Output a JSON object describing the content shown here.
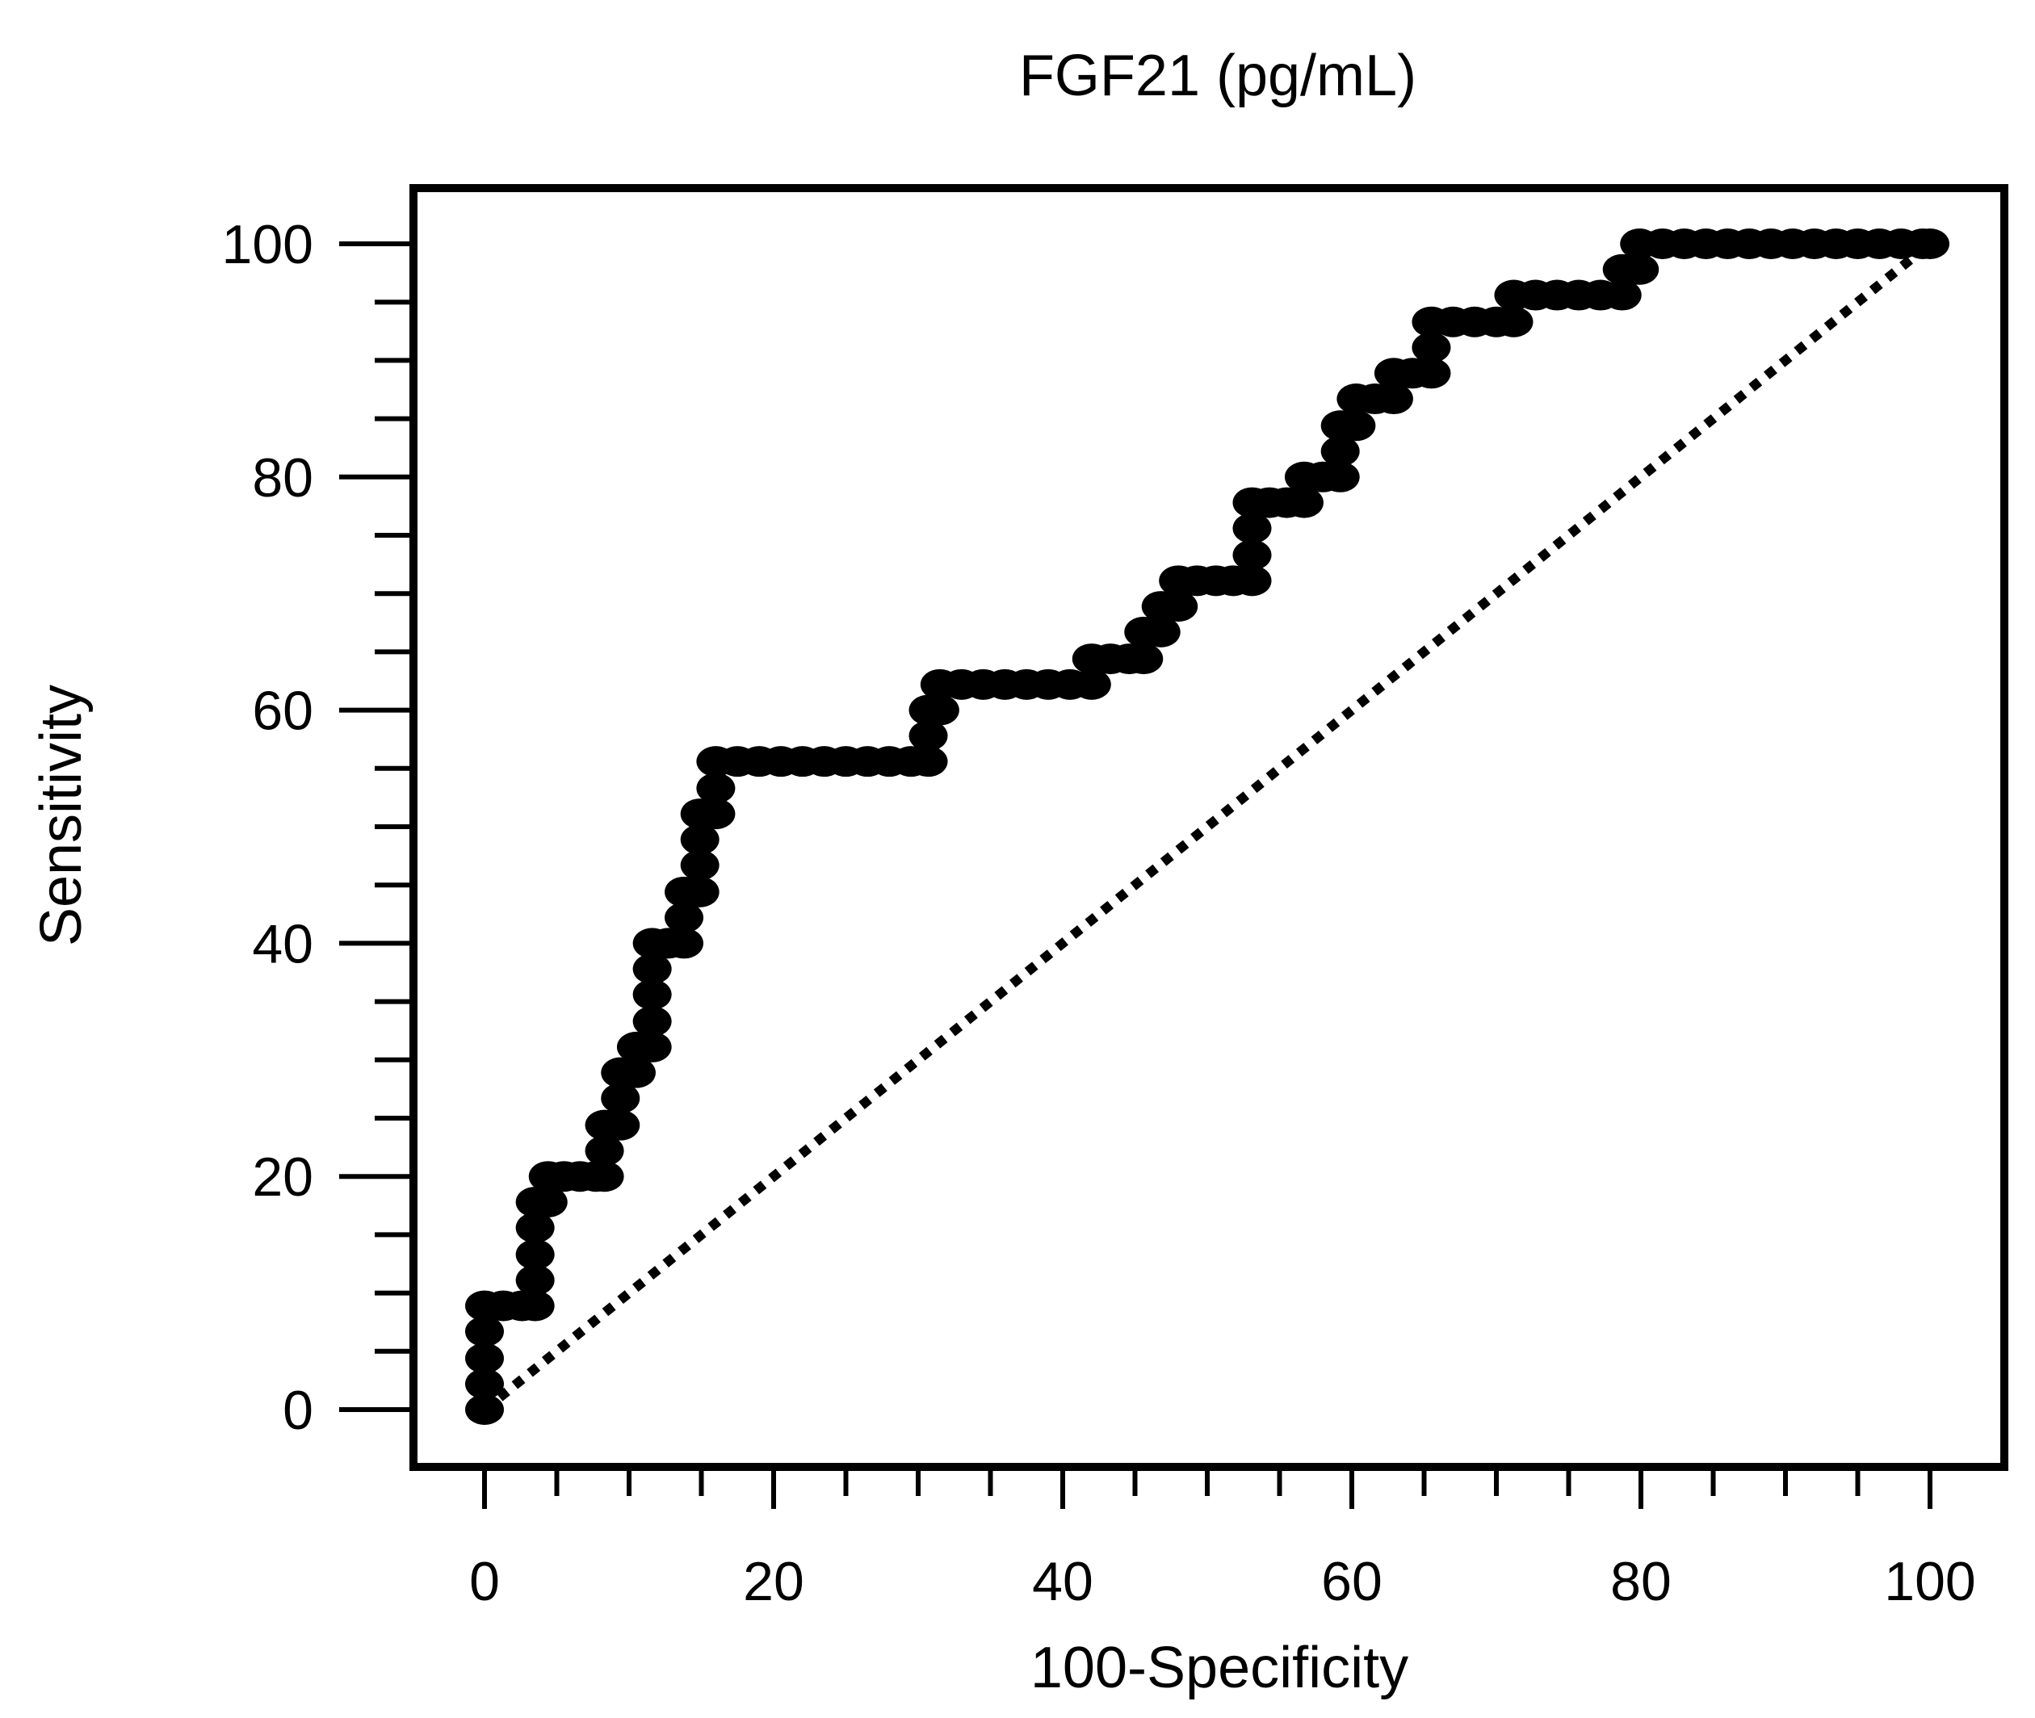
{
  "chart_data": {
    "type": "line",
    "title": "FGF21 (pg/mL)",
    "xlabel": "100-Specificity",
    "ylabel": "Sensitivity",
    "xlim": [
      0,
      100
    ],
    "ylim": [
      0,
      100
    ],
    "x_ticks": [
      0,
      20,
      40,
      60,
      80,
      100
    ],
    "y_ticks": [
      0,
      20,
      40,
      60,
      80,
      100
    ],
    "minor_tick_step": 5,
    "grid": false,
    "legend": "none",
    "colors": {
      "line": "#000000",
      "background": "#ffffff"
    },
    "series": [
      {
        "name": "ROC curve",
        "style": "thick step line with markers",
        "points": [
          [
            0,
            0
          ],
          [
            0,
            2.2
          ],
          [
            0,
            4.4
          ],
          [
            0,
            6.7
          ],
          [
            0,
            8.9
          ],
          [
            1.3,
            8.9
          ],
          [
            2.6,
            8.9
          ],
          [
            3.5,
            8.9
          ],
          [
            3.5,
            11.1
          ],
          [
            3.5,
            13.3
          ],
          [
            3.5,
            15.6
          ],
          [
            3.5,
            17.8
          ],
          [
            4.4,
            17.8
          ],
          [
            4.4,
            20
          ],
          [
            5.5,
            20
          ],
          [
            6.6,
            20
          ],
          [
            7.7,
            20
          ],
          [
            8.3,
            20
          ],
          [
            8.3,
            22.2
          ],
          [
            8.3,
            24.4
          ],
          [
            9.4,
            24.4
          ],
          [
            9.4,
            26.7
          ],
          [
            9.4,
            28.9
          ],
          [
            10.5,
            28.9
          ],
          [
            10.5,
            31.1
          ],
          [
            11.6,
            31.1
          ],
          [
            11.6,
            33.3
          ],
          [
            11.6,
            35.6
          ],
          [
            11.6,
            37.8
          ],
          [
            11.6,
            40
          ],
          [
            12.7,
            40
          ],
          [
            13.8,
            40
          ],
          [
            13.8,
            42.2
          ],
          [
            13.8,
            44.4
          ],
          [
            14.9,
            44.4
          ],
          [
            14.9,
            46.7
          ],
          [
            14.9,
            48.9
          ],
          [
            14.9,
            51.1
          ],
          [
            16.0,
            51.1
          ],
          [
            16.0,
            53.3
          ],
          [
            16.0,
            55.6
          ],
          [
            17.5,
            55.6
          ],
          [
            19,
            55.6
          ],
          [
            20.5,
            55.6
          ],
          [
            22,
            55.6
          ],
          [
            23.5,
            55.6
          ],
          [
            25,
            55.6
          ],
          [
            26.5,
            55.6
          ],
          [
            28,
            55.6
          ],
          [
            29.5,
            55.6
          ],
          [
            30.7,
            55.6
          ],
          [
            30.7,
            57.8
          ],
          [
            30.7,
            60
          ],
          [
            31.5,
            60
          ],
          [
            31.5,
            62.2
          ],
          [
            33,
            62.2
          ],
          [
            34.5,
            62.2
          ],
          [
            36,
            62.2
          ],
          [
            37.5,
            62.2
          ],
          [
            39,
            62.2
          ],
          [
            40.5,
            62.2
          ],
          [
            42,
            62.2
          ],
          [
            42,
            64.4
          ],
          [
            43.3,
            64.4
          ],
          [
            44.6,
            64.4
          ],
          [
            45.6,
            64.4
          ],
          [
            45.6,
            66.7
          ],
          [
            46.8,
            66.7
          ],
          [
            46.8,
            68.9
          ],
          [
            48.0,
            68.9
          ],
          [
            48.0,
            71.1
          ],
          [
            49.3,
            71.1
          ],
          [
            50.6,
            71.1
          ],
          [
            51.8,
            71.1
          ],
          [
            53.1,
            71.1
          ],
          [
            53.1,
            73.3
          ],
          [
            53.1,
            75.6
          ],
          [
            53.1,
            77.8
          ],
          [
            54.3,
            77.8
          ],
          [
            55.5,
            77.8
          ],
          [
            56.7,
            77.8
          ],
          [
            56.7,
            80
          ],
          [
            58.0,
            80
          ],
          [
            59.2,
            80
          ],
          [
            59.2,
            82.2
          ],
          [
            59.2,
            84.4
          ],
          [
            60.3,
            84.4
          ],
          [
            60.3,
            86.7
          ],
          [
            61.6,
            86.7
          ],
          [
            62.9,
            86.7
          ],
          [
            62.9,
            88.9
          ],
          [
            64.2,
            88.9
          ],
          [
            65.5,
            88.9
          ],
          [
            65.5,
            91.1
          ],
          [
            65.5,
            93.3
          ],
          [
            67,
            93.3
          ],
          [
            68.5,
            93.3
          ],
          [
            70,
            93.3
          ],
          [
            71.2,
            93.3
          ],
          [
            71.2,
            95.6
          ],
          [
            72.7,
            95.6
          ],
          [
            74.2,
            95.6
          ],
          [
            75.7,
            95.6
          ],
          [
            77.2,
            95.6
          ],
          [
            78.7,
            95.6
          ],
          [
            78.7,
            97.8
          ],
          [
            79.9,
            97.8
          ],
          [
            79.9,
            100
          ],
          [
            81.5,
            100
          ],
          [
            83,
            100
          ],
          [
            84.5,
            100
          ],
          [
            86,
            100
          ],
          [
            87.5,
            100
          ],
          [
            89,
            100
          ],
          [
            90.5,
            100
          ],
          [
            92,
            100
          ],
          [
            93.5,
            100
          ],
          [
            95,
            100
          ],
          [
            96.5,
            100
          ],
          [
            98,
            100
          ],
          [
            99.5,
            100
          ],
          [
            100,
            100
          ]
        ]
      },
      {
        "name": "Reference line",
        "style": "dotted diagonal",
        "points": [
          [
            0,
            0
          ],
          [
            100,
            100
          ]
        ]
      }
    ]
  }
}
